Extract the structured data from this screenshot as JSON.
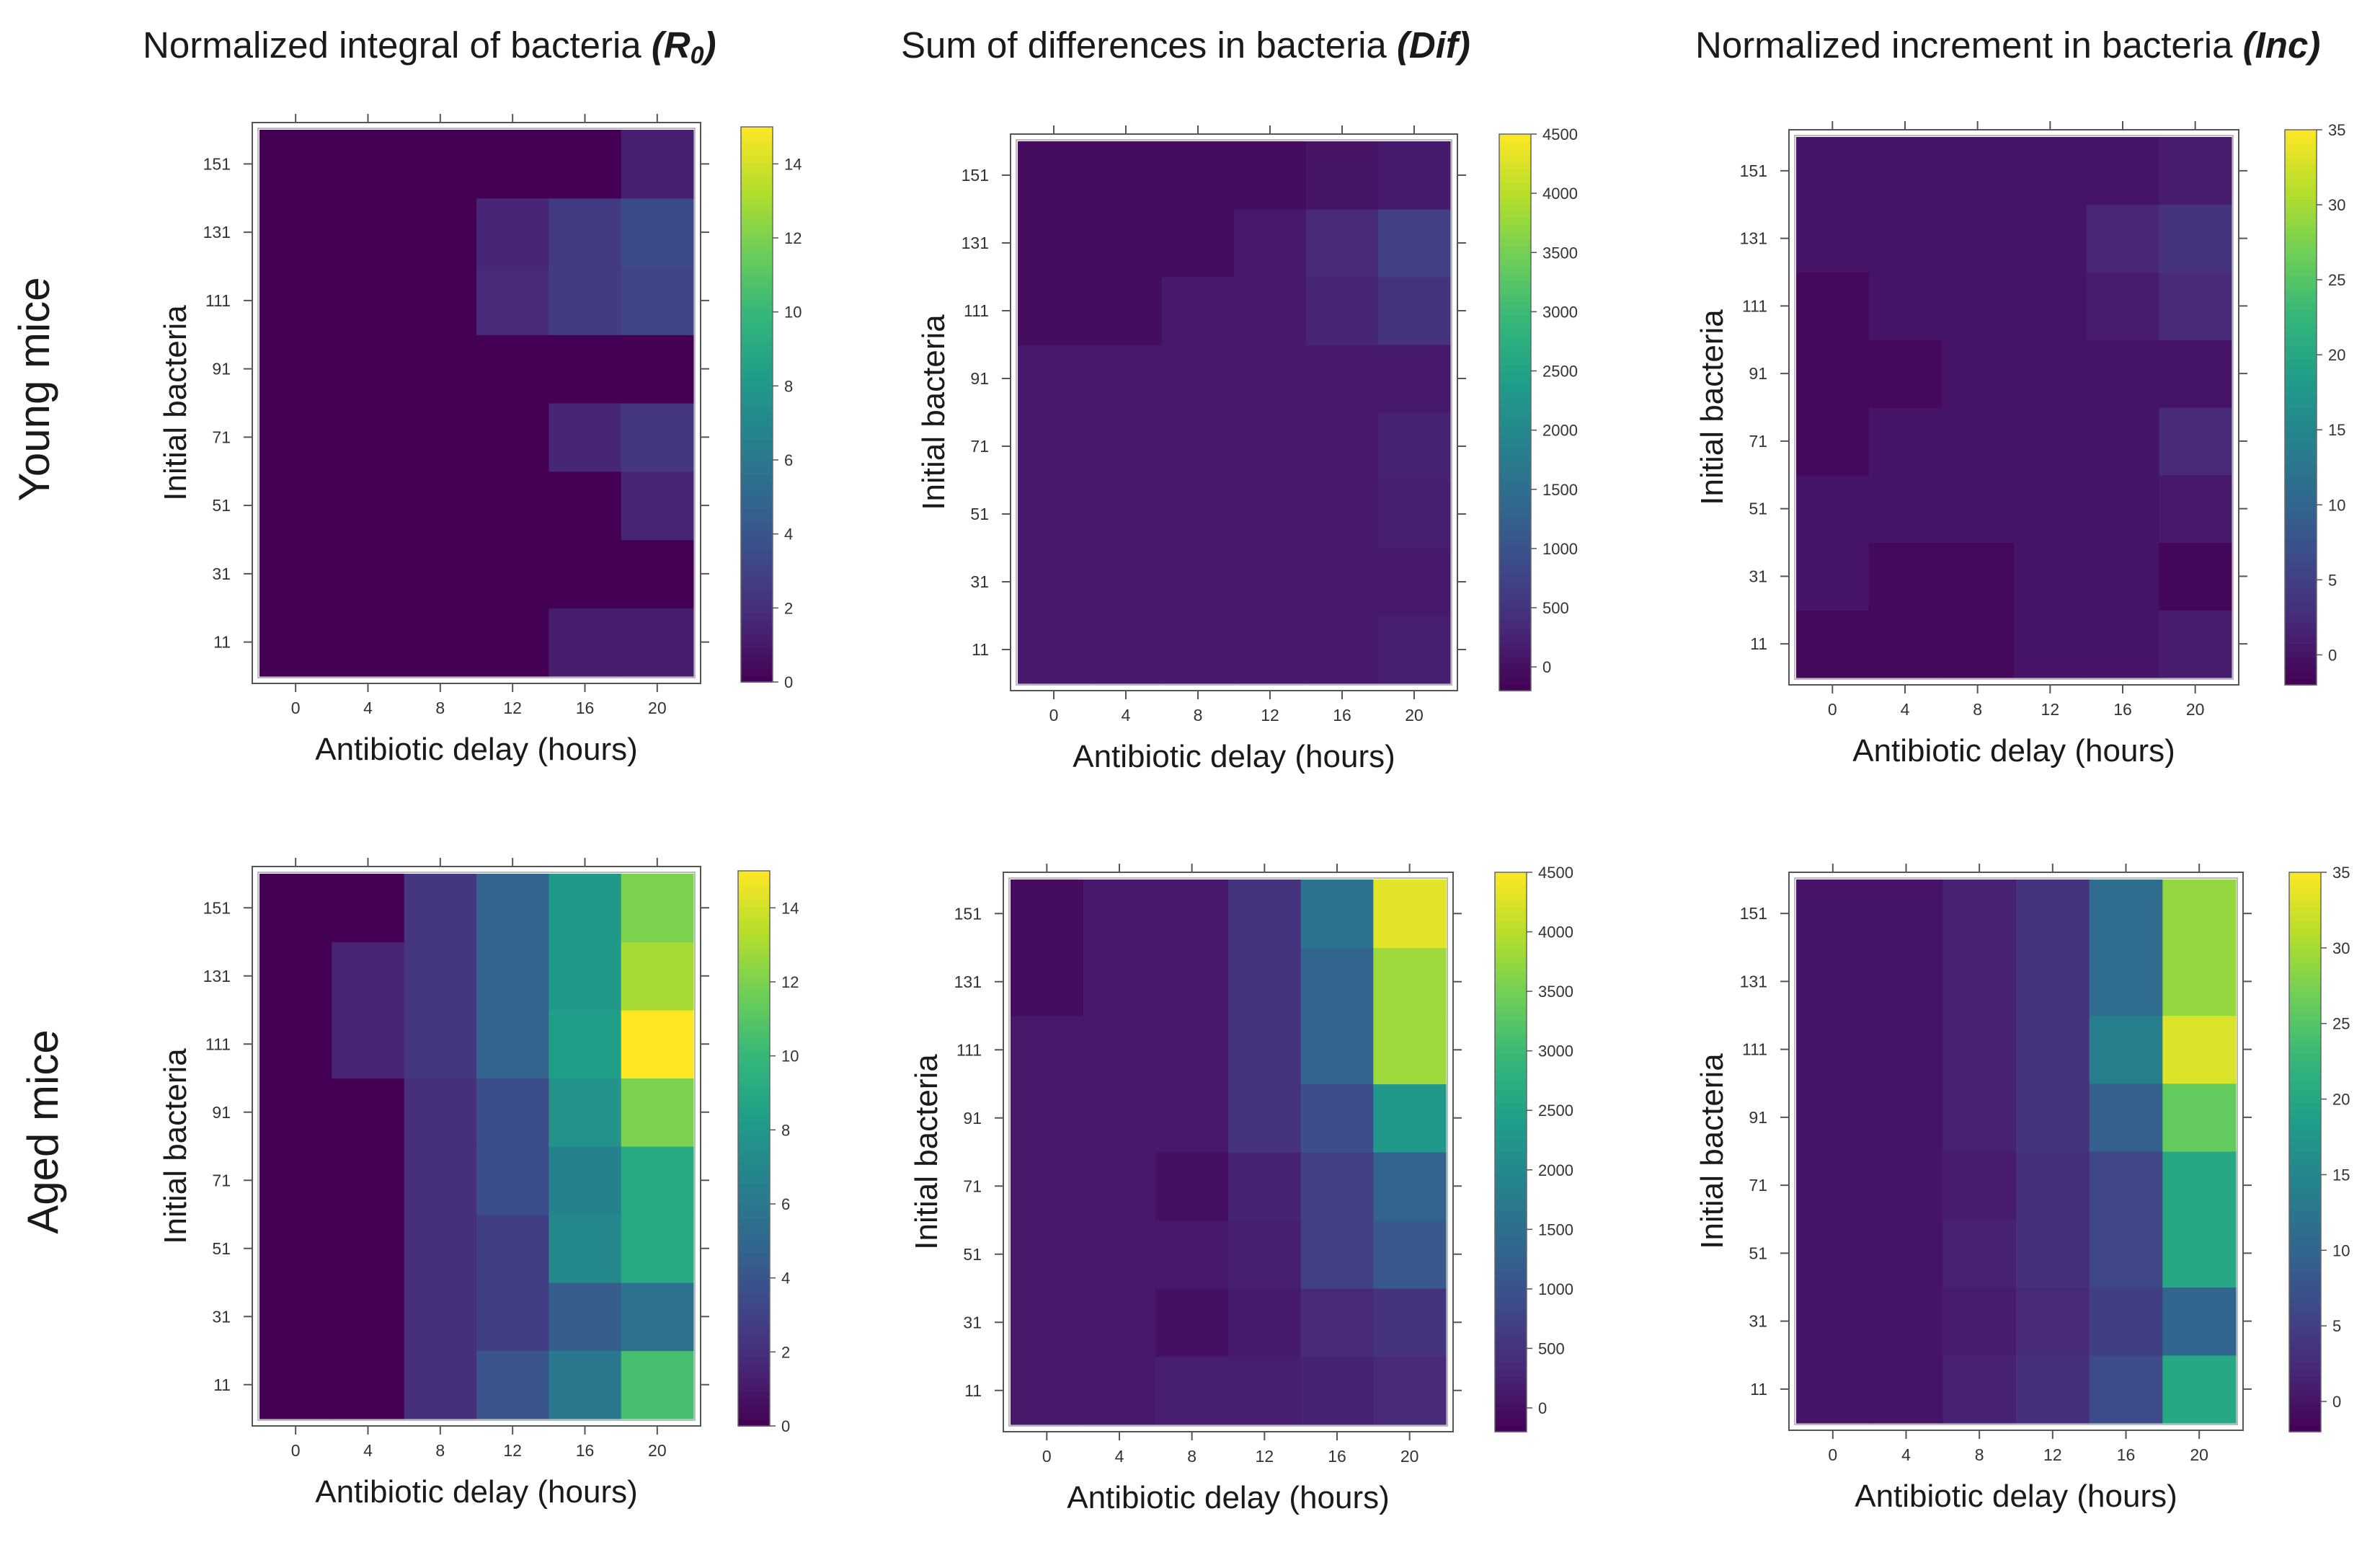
{
  "figure": {
    "column_titles": [
      {
        "text": "Normalized integral of bacteria ",
        "symbol_main": "(R",
        "symbol_sub": "0",
        "symbol_end": ")"
      },
      {
        "text": "Sum of differences in bacteria ",
        "symbol_main": "(Dif)",
        "symbol_sub": "",
        "symbol_end": ""
      },
      {
        "text": "Normalized increment in bacteria ",
        "symbol_main": "(Inc)",
        "symbol_sub": "",
        "symbol_end": ""
      }
    ],
    "row_labels": [
      "Young mice",
      "Aged mice"
    ]
  },
  "colormap": [
    "#440154",
    "#482878",
    "#3e4989",
    "#31688e",
    "#26828e",
    "#1f9e89",
    "#35b779",
    "#6ece58",
    "#b5de2b",
    "#fde725"
  ],
  "chart_data": [
    {
      "type": "heatmap",
      "row": "Young mice",
      "metric": "R0",
      "xlabel": "Antibiotic delay (hours)",
      "ylabel": "Initial bacteria",
      "x": [
        0,
        4,
        8,
        12,
        16,
        20
      ],
      "y": [
        11,
        31,
        51,
        71,
        91,
        111,
        131,
        151
      ],
      "vmin": 0,
      "vmax": 15,
      "colorbar_ticks": [
        0,
        2,
        4,
        6,
        8,
        10,
        12,
        14
      ],
      "values": [
        [
          0,
          0,
          0,
          0,
          1.2,
          1.2
        ],
        [
          0,
          0,
          0,
          0,
          0,
          0
        ],
        [
          0,
          0,
          0,
          0,
          0,
          1.5
        ],
        [
          0,
          0,
          0,
          0,
          1.6,
          2.4
        ],
        [
          0,
          0,
          0,
          0,
          0,
          0
        ],
        [
          0,
          0,
          0,
          1.8,
          2.6,
          3.2
        ],
        [
          0,
          0,
          0,
          1.6,
          2.6,
          3.4
        ],
        [
          0,
          0,
          0,
          0,
          0,
          1.3
        ]
      ]
    },
    {
      "type": "heatmap",
      "row": "Young mice",
      "metric": "Dif",
      "xlabel": "Antibiotic delay (hours)",
      "ylabel": "Initial bacteria",
      "x": [
        0,
        4,
        8,
        12,
        16,
        20
      ],
      "y": [
        11,
        31,
        51,
        71,
        91,
        111,
        131,
        151
      ],
      "vmin": -200,
      "vmax": 4500,
      "colorbar_ticks": [
        0,
        500,
        1000,
        1500,
        2000,
        2500,
        3000,
        3500,
        4000,
        4500
      ],
      "values": [
        [
          120,
          120,
          120,
          120,
          120,
          200
        ],
        [
          120,
          120,
          120,
          120,
          120,
          120
        ],
        [
          120,
          120,
          120,
          120,
          120,
          200
        ],
        [
          120,
          120,
          120,
          120,
          120,
          250
        ],
        [
          120,
          120,
          120,
          120,
          120,
          120
        ],
        [
          -40,
          -40,
          120,
          120,
          300,
          500
        ],
        [
          -40,
          -40,
          -40,
          120,
          350,
          700
        ],
        [
          -40,
          -40,
          -40,
          -40,
          50,
          150
        ]
      ]
    },
    {
      "type": "heatmap",
      "row": "Young mice",
      "metric": "Inc",
      "xlabel": "Antibiotic delay (hours)",
      "ylabel": "Initial bacteria",
      "x": [
        0,
        4,
        8,
        12,
        16,
        20
      ],
      "y": [
        11,
        31,
        51,
        71,
        91,
        111,
        131,
        151
      ],
      "vmin": -2,
      "vmax": 35,
      "colorbar_ticks": [
        0,
        5,
        10,
        15,
        20,
        25,
        30,
        35
      ],
      "values": [
        [
          -1.2,
          -1.2,
          -1.2,
          0,
          0,
          0.8
        ],
        [
          0,
          -1.2,
          -1.2,
          0,
          0,
          -1.5
        ],
        [
          0,
          0,
          0,
          0,
          0,
          0.5
        ],
        [
          -1.2,
          0,
          0,
          0,
          0,
          2.5
        ],
        [
          -1.2,
          -1.2,
          0,
          0,
          0,
          0
        ],
        [
          -1.2,
          0,
          0,
          0,
          0.8,
          2.5
        ],
        [
          0,
          0,
          0,
          0,
          2.0,
          3.5
        ],
        [
          0,
          0,
          0,
          0,
          0,
          0.8
        ]
      ]
    },
    {
      "type": "heatmap",
      "row": "Aged mice",
      "metric": "R0",
      "xlabel": "Antibiotic delay (hours)",
      "ylabel": "Initial bacteria",
      "x": [
        0,
        4,
        8,
        12,
        16,
        20
      ],
      "y": [
        11,
        31,
        51,
        71,
        91,
        111,
        131,
        151
      ],
      "vmin": 0,
      "vmax": 15,
      "colorbar_ticks": [
        0,
        2,
        4,
        6,
        8,
        10,
        12,
        14
      ],
      "values": [
        [
          0,
          0,
          2.0,
          4.0,
          6.0,
          10.5
        ],
        [
          0,
          0,
          2.0,
          2.8,
          4.4,
          5.6
        ],
        [
          0,
          0,
          2.0,
          2.8,
          7.0,
          9.0
        ],
        [
          0,
          0,
          2.0,
          3.6,
          6.6,
          9.0
        ],
        [
          0,
          0,
          2.0,
          3.6,
          7.6,
          12.0
        ],
        [
          0,
          1.5,
          2.4,
          4.8,
          8.4,
          15.0
        ],
        [
          0,
          1.5,
          2.4,
          4.8,
          8.0,
          13.0
        ],
        [
          0,
          0,
          2.4,
          4.8,
          8.0,
          12.0
        ]
      ]
    },
    {
      "type": "heatmap",
      "row": "Aged mice",
      "metric": "Dif",
      "xlabel": "Antibiotic delay (hours)",
      "ylabel": "Initial bacteria",
      "x": [
        0,
        4,
        8,
        12,
        16,
        20
      ],
      "y": [
        11,
        31,
        51,
        71,
        91,
        111,
        131,
        151
      ],
      "vmin": -200,
      "vmax": 4500,
      "colorbar_ticks": [
        0,
        500,
        1000,
        1500,
        2000,
        2500,
        3000,
        3500,
        4000,
        4500
      ],
      "values": [
        [
          120,
          120,
          200,
          200,
          250,
          350
        ],
        [
          120,
          120,
          0,
          150,
          350,
          500
        ],
        [
          120,
          120,
          120,
          200,
          700,
          1100
        ],
        [
          120,
          120,
          0,
          250,
          700,
          1300
        ],
        [
          120,
          120,
          120,
          500,
          900,
          2300
        ],
        [
          120,
          120,
          120,
          500,
          1300,
          3800
        ],
        [
          -40,
          120,
          120,
          500,
          1300,
          3800
        ],
        [
          -40,
          120,
          120,
          500,
          1600,
          4300
        ]
      ]
    },
    {
      "type": "heatmap",
      "row": "Aged mice",
      "metric": "Inc",
      "xlabel": "Antibiotic delay (hours)",
      "ylabel": "Initial bacteria",
      "x": [
        0,
        4,
        8,
        12,
        16,
        20
      ],
      "y": [
        11,
        31,
        51,
        71,
        91,
        111,
        131,
        151
      ],
      "vmin": -2,
      "vmax": 35,
      "colorbar_ticks": [
        0,
        5,
        10,
        15,
        20,
        25,
        30,
        35
      ],
      "values": [
        [
          0,
          0,
          1.5,
          3.0,
          6.5,
          20.0
        ],
        [
          0,
          0,
          0.8,
          2.5,
          5.0,
          10.0
        ],
        [
          0,
          0,
          1.5,
          3.0,
          6.0,
          20.0
        ],
        [
          0,
          0,
          0.8,
          3.0,
          6.0,
          20.0
        ],
        [
          0,
          0,
          1.5,
          3.5,
          9.5,
          26.0
        ],
        [
          0,
          0,
          1.5,
          3.5,
          14.0,
          33.0
        ],
        [
          0,
          0,
          1.5,
          3.5,
          11.0,
          29.0
        ],
        [
          0,
          0,
          1.5,
          3.5,
          11.0,
          29.0
        ]
      ]
    }
  ]
}
